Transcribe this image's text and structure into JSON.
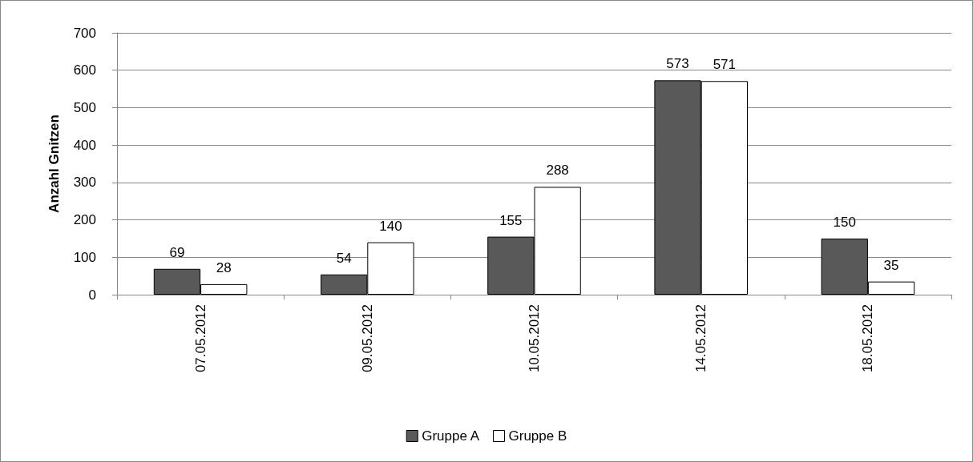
{
  "chart_data": {
    "type": "bar",
    "ylabel": "Anzahl Gnitzen",
    "categories": [
      "07.05.2012",
      "09.05.2012",
      "10.05.2012",
      "14.05.2012",
      "18.05.2012"
    ],
    "series": [
      {
        "name": "Gruppe A",
        "color": "#595959",
        "values": [
          69,
          54,
          155,
          573,
          150
        ]
      },
      {
        "name": "Gruppe B",
        "color": "#ffffff",
        "values": [
          28,
          140,
          288,
          571,
          35
        ]
      }
    ],
    "ylim": [
      0,
      700
    ],
    "yticks": [
      0,
      100,
      200,
      300,
      400,
      500,
      600,
      700
    ],
    "grid": "y",
    "legend": "bottom",
    "data_labels": true
  }
}
